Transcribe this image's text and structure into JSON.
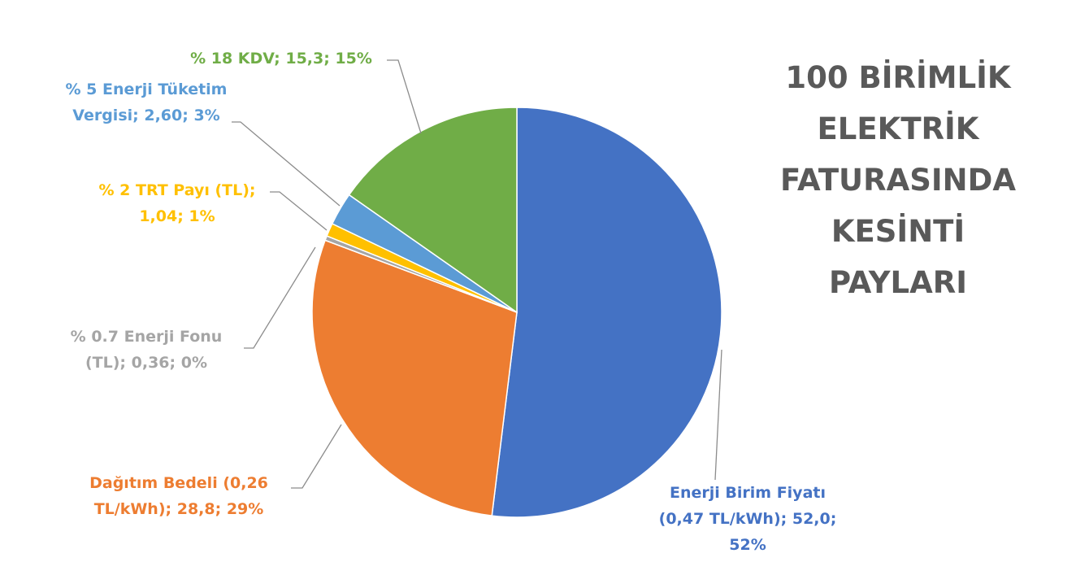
{
  "chart_data": {
    "type": "pie",
    "title_lines": [
      "100 BİRİMLİK",
      "ELEKTRİK",
      "FATURASINDA",
      "KESİNTİ",
      "PAYLARI"
    ],
    "slices": [
      {
        "name": "Enerji Birim Fiyatı (0,47 TL/kWh)",
        "value": 52.0,
        "percent": "52%",
        "color": "#4472c4",
        "label_lines": [
          "Enerji Birim Fiyatı",
          "(0,47 TL/kWh); 52,0;",
          "52%"
        ]
      },
      {
        "name": "Dağıtım Bedeli (0,26 TL/kWh)",
        "value": 28.8,
        "percent": "29%",
        "color": "#ed7d31",
        "label_lines": [
          "Dağıtım Bedeli (0,26",
          "TL/kWh); 28,8; 29%"
        ]
      },
      {
        "name": "% 0.7 Enerji Fonu (TL)",
        "value": 0.36,
        "percent": "0%",
        "color": "#a5a5a5",
        "label_lines": [
          "% 0.7 Enerji Fonu",
          "(TL); 0,36; 0%"
        ]
      },
      {
        "name": "% 2 TRT Payı (TL)",
        "value": 1.04,
        "percent": "1%",
        "color": "#ffc000",
        "label_lines": [
          "% 2 TRT Payı (TL);",
          "1,04; 1%"
        ]
      },
      {
        "name": "% 5 Enerji Tüketim Vergisi",
        "value": 2.6,
        "percent": "3%",
        "color": "#5b9bd5",
        "label_lines": [
          "% 5 Enerji Tüketim",
          "Vergisi; 2,60; 3%"
        ]
      },
      {
        "name": "% 18 KDV",
        "value": 15.3,
        "percent": "15%",
        "color": "#70ad47",
        "label_lines": [
          "% 18 KDV; 15,3; 15%"
        ]
      }
    ],
    "legend": "none"
  }
}
